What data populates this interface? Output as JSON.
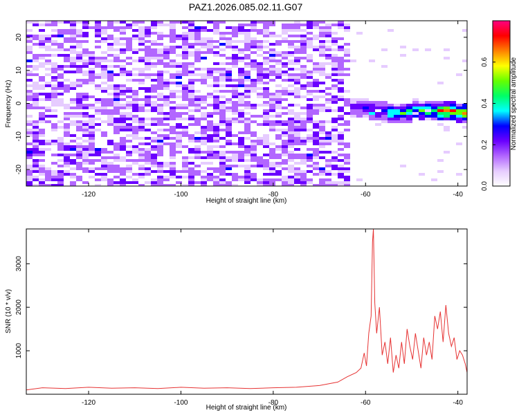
{
  "title": "PAZ1.2026.085.02.11.G07",
  "chart_data": [
    {
      "type": "heatmap",
      "title": "PAZ1.2026.085.02.11.G07",
      "xlabel": "Height of straight line (km)",
      "ylabel": "Frequency (Hz)",
      "xlim": [
        -133.5,
        -38
      ],
      "ylim": [
        -25,
        25
      ],
      "x_ticks": [
        -120,
        -100,
        -80,
        -60,
        -40
      ],
      "x_tick_labels": [
        "-120",
        "-100",
        "-80",
        "-60",
        "-40"
      ],
      "y_ticks": [
        -20,
        -10,
        0,
        10,
        20
      ],
      "y_tick_labels": [
        "-20",
        "-10",
        "0",
        "10",
        "20"
      ],
      "colorbar": {
        "label": "Normalized spectral amplitude",
        "range": [
          0.0,
          0.8
        ],
        "ticks": [
          0.0,
          0.2,
          0.4,
          0.6
        ],
        "tick_labels": [
          "0.0",
          "0.2",
          "0.4",
          "0.6"
        ],
        "colors": [
          "#ffffff",
          "#e6ccff",
          "#b266ff",
          "#6a00ff",
          "#0000ff",
          "#00ffff",
          "#00ff66",
          "#66ff00",
          "#ffff00",
          "#ff8000",
          "#ff0000",
          "#ff0080"
        ]
      },
      "signal": {
        "noise_region_km": [
          -133.5,
          -64
        ],
        "noise_freq_range_hz": [
          -25,
          25
        ],
        "noise_amplitude_typical": 0.1,
        "track": [
          {
            "x": -65,
            "y": 0.5,
            "amp": 0.25
          },
          {
            "x": -62,
            "y": -1,
            "amp": 0.3
          },
          {
            "x": -58,
            "y": -2,
            "amp": 0.4
          },
          {
            "x": -55,
            "y": -2.5,
            "amp": 0.45
          },
          {
            "x": -52,
            "y": -2.5,
            "amp": 0.5
          },
          {
            "x": -49,
            "y": -2,
            "amp": 0.55
          },
          {
            "x": -46,
            "y": -2,
            "amp": 0.6
          },
          {
            "x": -43,
            "y": -2,
            "amp": 0.75
          },
          {
            "x": -40,
            "y": -2.5,
            "amp": 0.7
          },
          {
            "x": -38,
            "y": -2.5,
            "amp": 0.65
          }
        ]
      }
    },
    {
      "type": "line",
      "xlabel": "Height of straight line (km)",
      "ylabel": "SNR (10 * v/v)",
      "xlim": [
        -133.5,
        -38
      ],
      "ylim": [
        0,
        3800
      ],
      "x_ticks": [
        -120,
        -100,
        -80,
        -60,
        -40
      ],
      "x_tick_labels": [
        "-120",
        "-100",
        "-80",
        "-60",
        "-40"
      ],
      "y_ticks": [
        1000,
        2000,
        3000
      ],
      "y_tick_labels": [
        "1000",
        "2000",
        "3000"
      ],
      "series": [
        {
          "name": "SNR",
          "color": "#e63232",
          "x": [
            -133.5,
            -130,
            -125,
            -120,
            -115,
            -110,
            -105,
            -100,
            -95,
            -90,
            -85,
            -80,
            -75,
            -70,
            -66,
            -64,
            -62,
            -61,
            -60.3,
            -59.8,
            -59.3,
            -58.8,
            -58.5,
            -58.3,
            -58.0,
            -57.6,
            -57.0,
            -56.4,
            -55.8,
            -55.2,
            -54.6,
            -54.0,
            -53.4,
            -52.8,
            -52.2,
            -51.6,
            -51.0,
            -50.4,
            -49.8,
            -49.2,
            -48.6,
            -48.0,
            -47.4,
            -46.8,
            -46.2,
            -45.6,
            -45.0,
            -44.4,
            -43.8,
            -43.2,
            -42.6,
            -42.0,
            -41.4,
            -40.8,
            -40.2,
            -39.6,
            -39.0,
            -38.4,
            -38.0
          ],
          "values": [
            100,
            150,
            130,
            160,
            140,
            150,
            130,
            160,
            140,
            150,
            130,
            150,
            160,
            200,
            280,
            400,
            500,
            600,
            950,
            650,
            1400,
            1800,
            3500,
            3800,
            2100,
            1400,
            2000,
            900,
            1200,
            700,
            1300,
            500,
            900,
            600,
            1200,
            700,
            1500,
            1100,
            800,
            1400,
            1000,
            600,
            1300,
            900,
            1200,
            800,
            1800,
            1500,
            1900,
            1200,
            2050,
            1400,
            1100,
            1300,
            800,
            1000,
            900,
            700,
            500
          ]
        }
      ]
    }
  ]
}
